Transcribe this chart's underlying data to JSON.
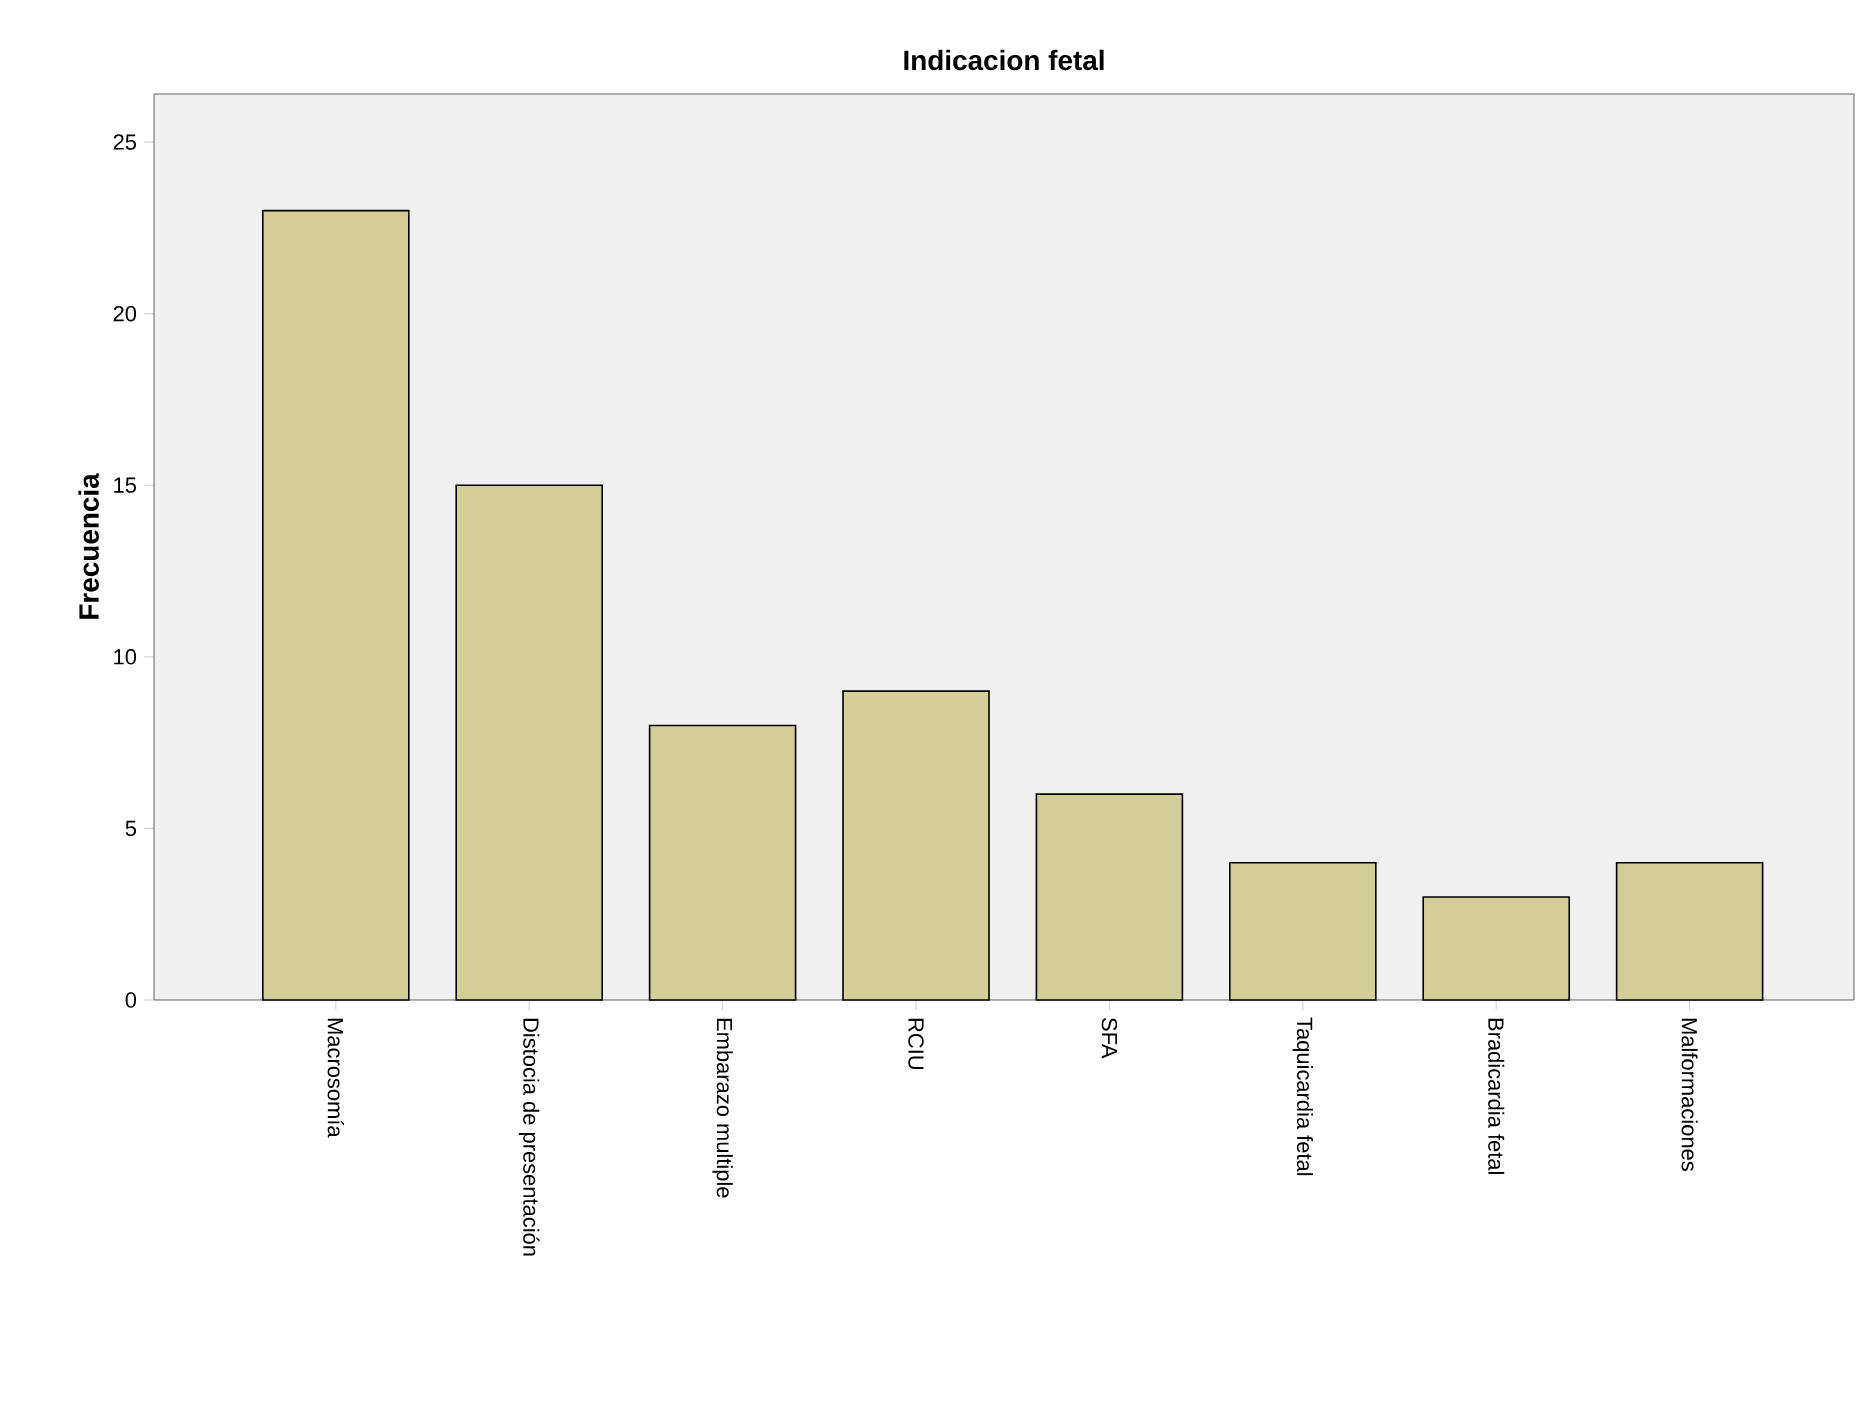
{
  "chart_data": {
    "type": "bar",
    "title": "Indicacion fetal",
    "ylabel": "Frecuencia",
    "categories": [
      "Macrosomía",
      "Distocia de presentación",
      "Embarazo multiple",
      "RCIU",
      "SFA",
      "Taquicardia fetal",
      "Bradicardia fetal",
      "Malformaciones"
    ],
    "values": [
      23,
      15,
      8,
      9,
      6,
      4,
      3,
      4
    ],
    "color": "#d3ce97",
    "ylim": [
      0,
      26.4
    ],
    "yticks": [
      0,
      5,
      10,
      15,
      20,
      25
    ]
  }
}
